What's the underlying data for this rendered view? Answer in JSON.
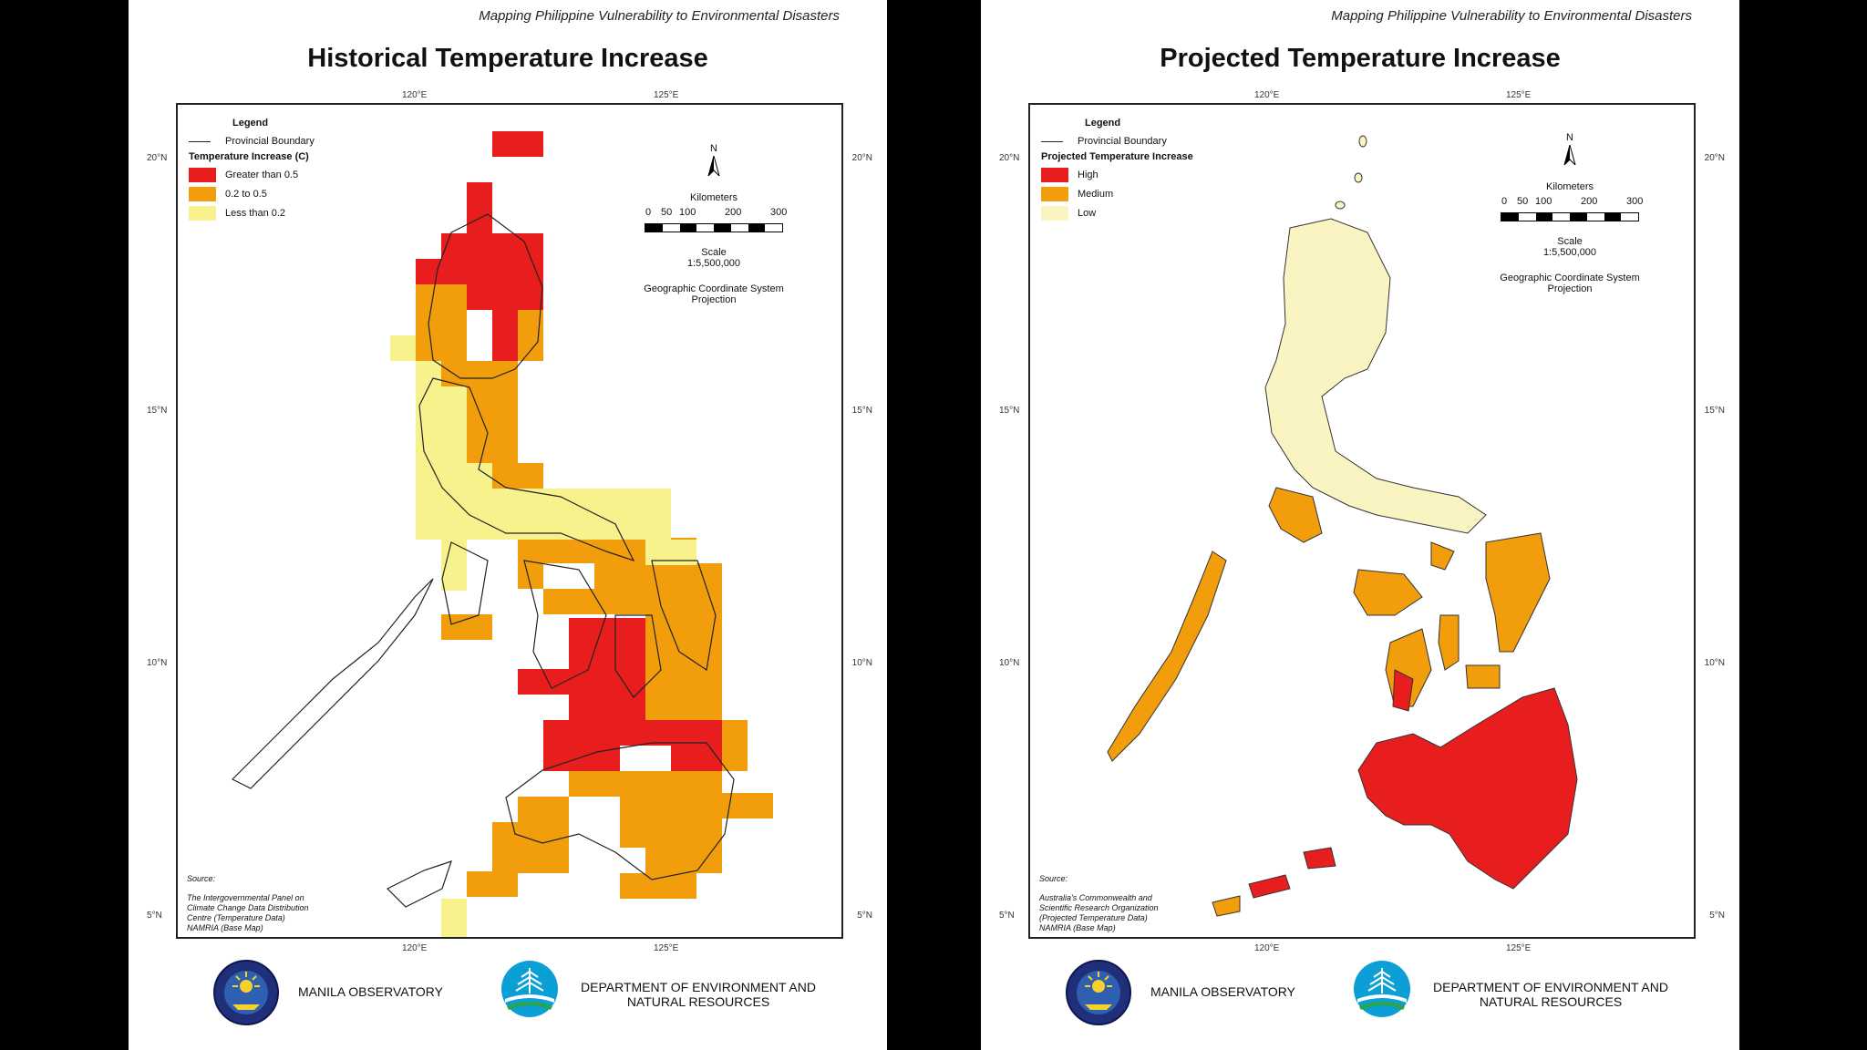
{
  "header_caption": "Mapping Philippine Vulnerability to Environmental Disasters",
  "colors": {
    "high": "#e81d1d",
    "medium": "#f29d0c",
    "low_left": "#f7f28c",
    "low_right": "#faf3c2"
  },
  "axes": {
    "top_ticks": [
      "120°E",
      "125°E"
    ],
    "bottom_ticks": [
      "120°E",
      "125°E"
    ],
    "left_ticks": [
      "20°N",
      "15°N",
      "10°N",
      "5°N"
    ],
    "right_ticks": [
      "20°N",
      "15°N",
      "10°N",
      "5°N"
    ]
  },
  "scale": {
    "north": "N",
    "units": "Kilometers",
    "km_ticks": [
      "0",
      "50",
      "100",
      "200",
      "300"
    ],
    "scale_label": "Scale",
    "scale_ratio": "1:5,500,000",
    "projection_line1": "Geographic Coordinate System",
    "projection_line2": "Projection"
  },
  "left_map": {
    "title": "Historical Temperature Increase",
    "legend_title": "Legend",
    "boundary_label": "Provincial Boundary",
    "legend_subtitle": "Temperature Increase (C)",
    "classes": [
      {
        "label": "Greater than 0.5",
        "color": "#e81d1d"
      },
      {
        "label": "0.2 to 0.5",
        "color": "#f29d0c"
      },
      {
        "label": "Less than 0.2",
        "color": "#f7f28c"
      }
    ],
    "source_title": "Source:",
    "source_lines": [
      "The Intergovernmental Panel on",
      "Climate Change Data Distribution",
      "Centre (Temperature Data)",
      "NAMRIA (Base Map)"
    ]
  },
  "right_map": {
    "title": "Projected Temperature Increase",
    "legend_title": "Legend",
    "boundary_label": "Provincial Boundary",
    "legend_subtitle": "Projected Temperature Increase",
    "classes": [
      {
        "label": "High",
        "color": "#e81d1d"
      },
      {
        "label": "Medium",
        "color": "#f29d0c"
      },
      {
        "label": "Low",
        "color": "#faf3c2"
      }
    ],
    "source_title": "Source:",
    "source_lines": [
      "Australia's Commonwealth and",
      "Scientific Research Organization",
      "(Projected Temperature Data)",
      "NAMRIA (Base Map)"
    ]
  },
  "footer": {
    "observatory": "MANILA OBSERVATORY",
    "denr_line1": "DEPARTMENT OF ENVIRONMENT AND",
    "denr_line2": "NATURAL RESOURCES"
  }
}
